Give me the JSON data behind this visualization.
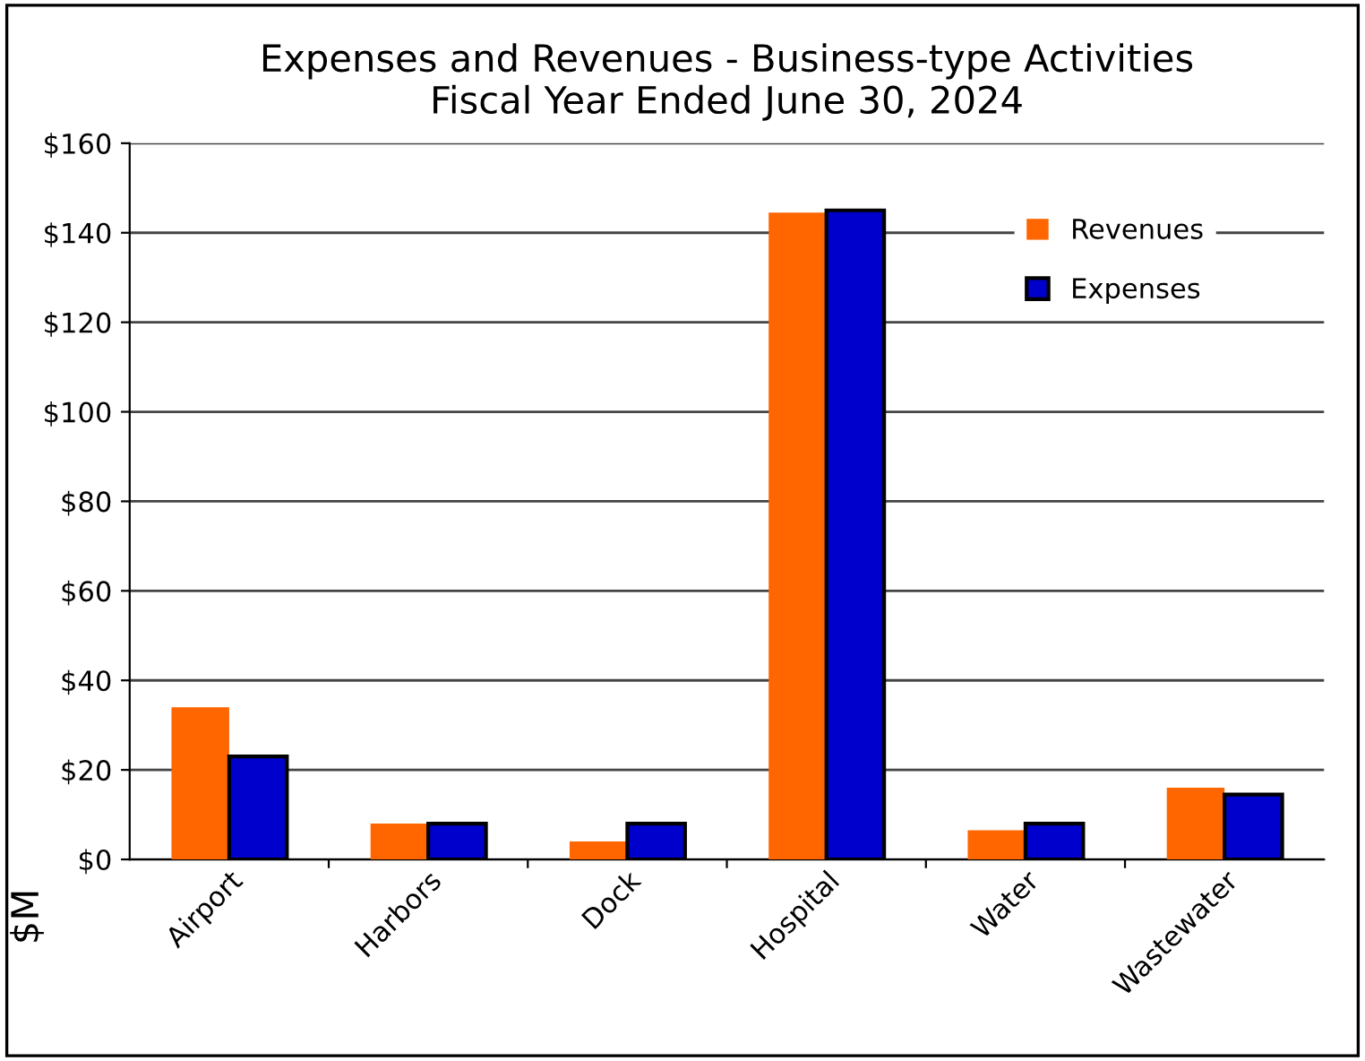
{
  "chart_data": {
    "type": "bar",
    "title": "Expenses and Revenues - Business-type Activities\nFiscal Year Ended June 30, 2024",
    "ylabel": "$M",
    "categories": [
      "Airport",
      "Harbors",
      "Dock",
      "Hospital",
      "Water",
      "Wastewater"
    ],
    "series": [
      {
        "name": "Revenues",
        "color": "#ff6600",
        "values": [
          34,
          8,
          4,
          144.5,
          6.5,
          16
        ]
      },
      {
        "name": "Expenses",
        "color": "#0000cc",
        "values": [
          23,
          8,
          8,
          145,
          8,
          14.5
        ]
      }
    ],
    "ylim": [
      0,
      160
    ],
    "yticks": [
      {
        "value": 0,
        "label": "$0"
      },
      {
        "value": 20,
        "label": "$20"
      },
      {
        "value": 40,
        "label": "$40"
      },
      {
        "value": 60,
        "label": "$60"
      },
      {
        "value": 80,
        "label": "$80"
      },
      {
        "value": 100,
        "label": "$100"
      },
      {
        "value": 120,
        "label": "$120"
      },
      {
        "value": 140,
        "label": "$140"
      },
      {
        "value": 160,
        "label": "$160"
      }
    ],
    "grid": "y",
    "legend": "top right"
  }
}
